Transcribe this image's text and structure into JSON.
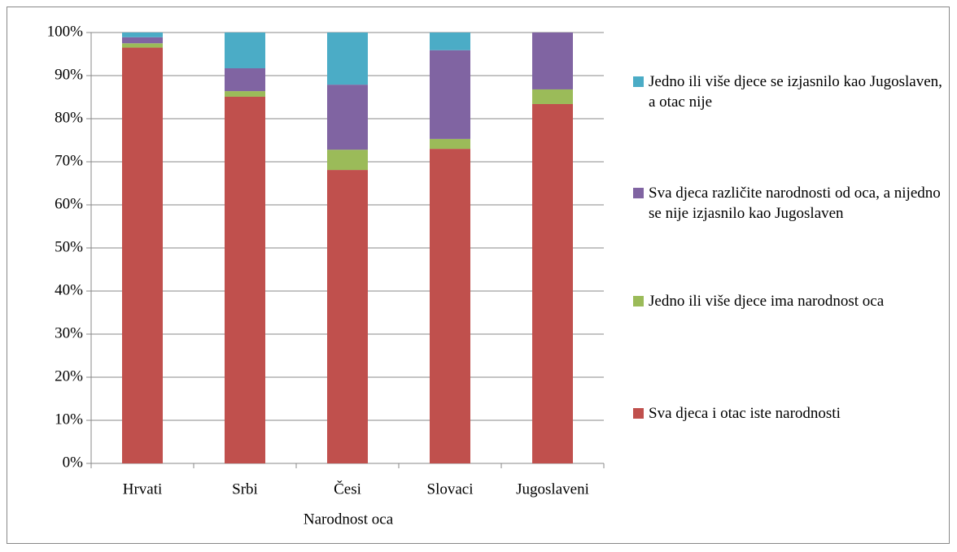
{
  "chart_data": {
    "type": "stacked_bar",
    "x_label": "Narodnost oca",
    "categories": [
      "Hrvati",
      "Srbi",
      "Česi",
      "Slovaci",
      "Jugoslaveni"
    ],
    "series": [
      {
        "name": "Sva djeca i otac iste narodnosti",
        "color": "#c0504d",
        "values": [
          96.5,
          85.1,
          68.1,
          73.0,
          83.4
        ]
      },
      {
        "name": "Jedno ili više djece ima narodnost oca",
        "color": "#9bbb59",
        "values": [
          1.0,
          1.3,
          4.7,
          2.3,
          3.4
        ]
      },
      {
        "name": "Sva djeca različite narodnosti od oca, a nijedno se nije izjasnilo kao Jugoslaven",
        "color": "#8064a2",
        "values": [
          1.4,
          5.3,
          15.1,
          20.6,
          13.2
        ]
      },
      {
        "name": "Jedno ili više djece se izjasnilo kao Jugoslaven, a otac nije",
        "color": "#4bacc6",
        "values": [
          1.1,
          8.3,
          12.1,
          4.1,
          0
        ]
      }
    ],
    "ylim": [
      0,
      100
    ],
    "yticks": [
      {
        "value": 0,
        "label": "0%"
      },
      {
        "value": 10,
        "label": "10%"
      },
      {
        "value": 20,
        "label": "20%"
      },
      {
        "value": 30,
        "label": "30%"
      },
      {
        "value": 40,
        "label": "40%"
      },
      {
        "value": 50,
        "label": "50%"
      },
      {
        "value": 60,
        "label": "60%"
      },
      {
        "value": 70,
        "label": "70%"
      },
      {
        "value": 80,
        "label": "80%"
      },
      {
        "value": 90,
        "label": "90%"
      },
      {
        "value": 100,
        "label": "100%"
      }
    ],
    "grid": true,
    "legend": "right"
  }
}
